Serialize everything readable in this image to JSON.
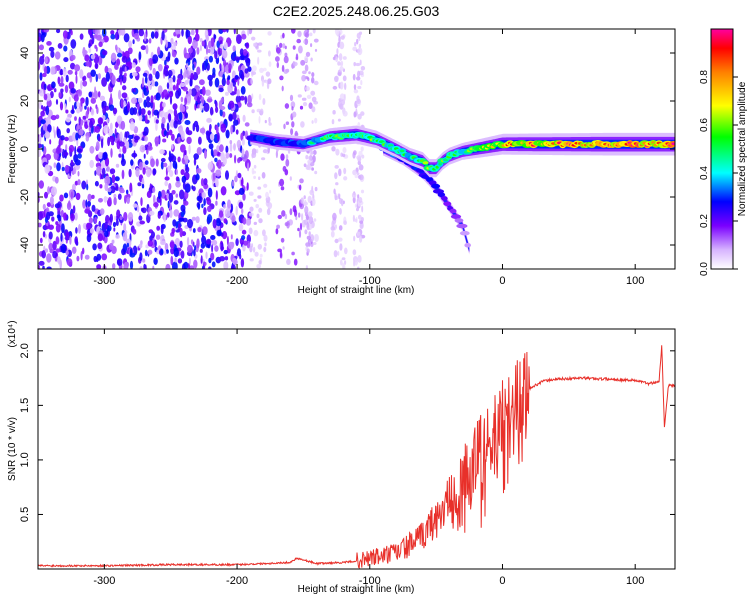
{
  "title": "C2E2.2025.248.06.25.G03",
  "chart_data": [
    {
      "type": "heatmap",
      "name": "spectrogram",
      "xlabel": "Height of straight line (km)",
      "ylabel": "Frequency (Hz)",
      "xlim": [
        -350,
        130
      ],
      "ylim": [
        -50,
        50
      ],
      "xticks": [
        -300,
        -200,
        -100,
        0,
        100
      ],
      "yticks": [
        -40,
        -20,
        0,
        20,
        40
      ],
      "colorbar": {
        "label": "Normalized spectral amplitude",
        "range": [
          0,
          1
        ],
        "ticks": [
          "0.0",
          "0.2",
          "0.4",
          "0.6",
          "0.8"
        ],
        "tick_values": [
          0.0,
          0.2,
          0.4,
          0.6,
          0.8
        ]
      },
      "noise_region": {
        "x": [
          -350,
          -190
        ],
        "y": [
          -50,
          50
        ],
        "amplitude": [
          0.05,
          0.3
        ]
      },
      "sparse_noise_bands": [
        {
          "x": [
            -190,
            -175
          ],
          "amplitude": 0.08
        },
        {
          "x": [
            -170,
            -150
          ],
          "amplitude": 0.15
        },
        {
          "x": [
            -150,
            -140
          ],
          "amplitude": 0.1
        },
        {
          "x": [
            -128,
            -118
          ],
          "amplitude": 0.08
        },
        {
          "x": [
            -112,
            -105
          ],
          "amplitude": 0.08
        }
      ],
      "ridge": {
        "x": [
          -190,
          -170,
          -150,
          -130,
          -110,
          -95,
          -80,
          -70,
          -60,
          -55,
          -50,
          -45,
          -40,
          -30,
          -20,
          -10,
          0,
          20,
          50,
          80,
          100,
          130
        ],
        "freq": [
          5,
          3,
          2,
          5,
          6,
          4,
          0,
          -3,
          -5,
          -8,
          -8,
          -5,
          -3,
          -1,
          0,
          1,
          2,
          2,
          2,
          2,
          2,
          2
        ],
        "amplitude": [
          0.35,
          0.4,
          0.4,
          0.55,
          0.6,
          0.55,
          0.5,
          0.5,
          0.55,
          0.6,
          0.6,
          0.55,
          0.5,
          0.5,
          0.6,
          0.7,
          0.8,
          0.85,
          0.9,
          0.95,
          0.95,
          0.95
        ]
      },
      "branch": {
        "x": [
          -90,
          -75,
          -60,
          -50,
          -45,
          -40,
          -35,
          -30,
          -25
        ],
        "freq": [
          0,
          -4,
          -10,
          -16,
          -20,
          -24,
          -28,
          -32,
          -42
        ],
        "amplitude": [
          0.4,
          0.4,
          0.35,
          0.35,
          0.3,
          0.25,
          0.2,
          0.15,
          0.1
        ]
      }
    },
    {
      "type": "line",
      "name": "snr",
      "xlabel": "Height of straight line (km)",
      "ylabel": "SNR (10 * v/v)",
      "y_multiplier": "(x10⁴)",
      "xlim": [
        -350,
        130
      ],
      "ylim": [
        0,
        2.2
      ],
      "xticks": [
        -300,
        -200,
        -100,
        0,
        100
      ],
      "yticks": [
        "0.5",
        "1.0",
        "1.5",
        "2.0"
      ],
      "ytick_values": [
        0.5,
        1.0,
        1.5,
        2.0
      ],
      "color": "#e8302a",
      "series": [
        {
          "name": "SNR",
          "x": [
            -350,
            -300,
            -250,
            -200,
            -180,
            -160,
            -155,
            -140,
            -120,
            -105,
            -100,
            -90,
            -80,
            -70,
            -60,
            -55,
            -50,
            -45,
            -40,
            -35,
            -30,
            -25,
            -20,
            -15,
            -10,
            -5,
            0,
            10,
            20,
            30,
            40,
            60,
            80,
            100,
            110,
            118,
            120,
            122,
            125,
            130
          ],
          "y": [
            0.03,
            0.03,
            0.04,
            0.04,
            0.05,
            0.06,
            0.1,
            0.05,
            0.06,
            0.08,
            0.1,
            0.12,
            0.15,
            0.22,
            0.3,
            0.4,
            0.45,
            0.55,
            0.65,
            0.7,
            0.9,
            0.85,
            1.05,
            1.1,
            1.15,
            1.25,
            1.35,
            1.5,
            1.65,
            1.72,
            1.74,
            1.75,
            1.74,
            1.73,
            1.7,
            1.72,
            2.05,
            1.3,
            1.68,
            1.68
          ]
        }
      ]
    }
  ]
}
